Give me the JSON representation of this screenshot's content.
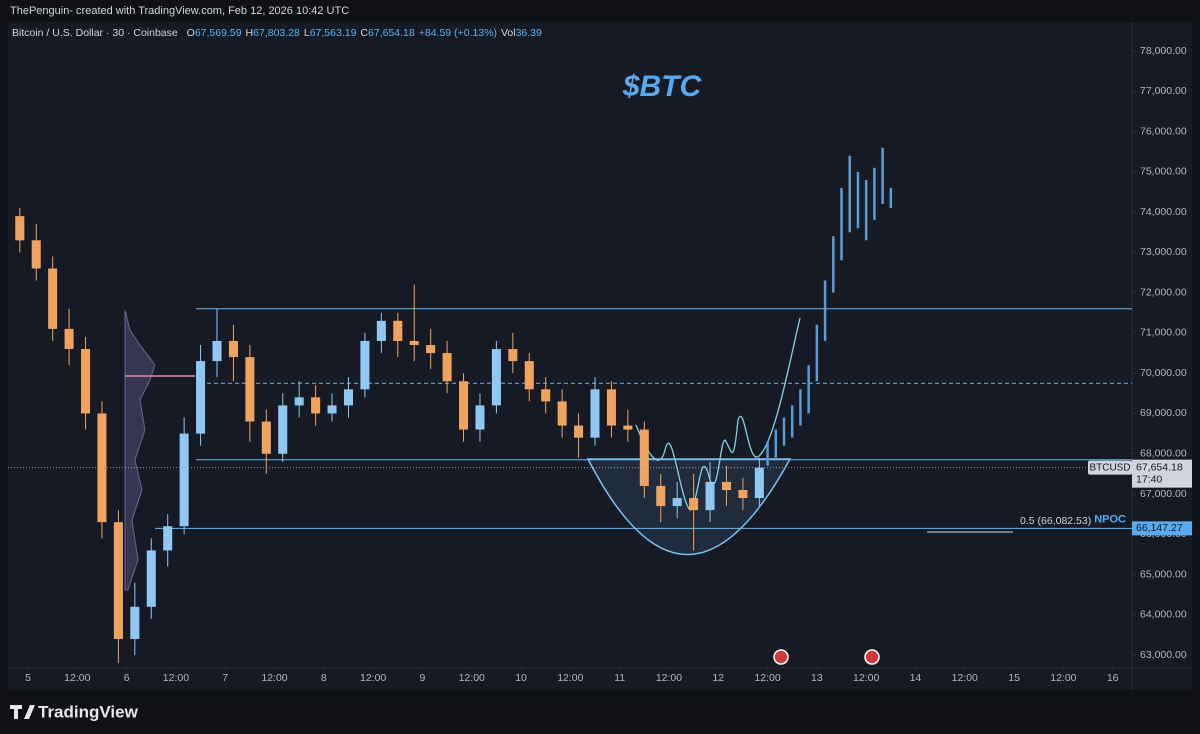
{
  "chart_data": {
    "type": "candlestick",
    "header": "ThePenguin- created with TradingView.com, Feb 12, 2026 10:42 UTC",
    "symbol": "Bitcoin / U.S. Dollar · 30 · Coinbase",
    "ohlc": [
      {
        "key": "O",
        "value": "67,569.59"
      },
      {
        "key": "H",
        "value": "67,803.28"
      },
      {
        "key": "L",
        "value": "67,563.19"
      },
      {
        "key": "C",
        "value": "67,654.18"
      }
    ],
    "change": "+84.59 (+0.13%)",
    "volume": {
      "key": "Vol",
      "value": "36.39"
    },
    "title": "$BTC",
    "up_color": "#90c8f4",
    "down_color": "#f0a35e",
    "projection_color": "#5b9bd5",
    "level_color": "#6fb4ec",
    "grid": false,
    "x": [
      -2,
      2,
      6,
      10,
      14,
      18,
      22,
      26,
      30,
      34,
      38,
      42,
      46,
      50,
      54,
      58,
      62,
      66,
      70,
      74,
      78,
      82,
      86,
      90,
      94,
      98,
      102,
      106,
      110,
      114,
      118,
      122,
      126,
      130,
      134,
      138,
      142,
      146,
      150,
      154,
      158,
      162,
      166,
      170,
      174,
      178
    ],
    "open": [
      73900,
      73300,
      72600,
      71100,
      70600,
      69000,
      66300,
      63400,
      64200,
      65600,
      66200,
      68500,
      70300,
      70800,
      70400,
      68800,
      68000,
      69200,
      69400,
      69000,
      69200,
      69600,
      70800,
      71300,
      70800,
      70700,
      70500,
      69800,
      68600,
      69200,
      70600,
      70300,
      69600,
      69300,
      68700,
      68400,
      69600,
      68700,
      68600,
      67200,
      66700,
      66900,
      66600,
      67300,
      67100,
      66900
    ],
    "high": [
      74100,
      73700,
      72900,
      71600,
      70900,
      69300,
      66600,
      64800,
      65900,
      66500,
      68900,
      70700,
      71600,
      71200,
      70700,
      69100,
      69500,
      69800,
      69700,
      69500,
      69900,
      71000,
      71500,
      71500,
      72200,
      71100,
      70800,
      70000,
      69500,
      70800,
      71000,
      70500,
      69900,
      69600,
      69000,
      69900,
      69800,
      69100,
      68800,
      67500,
      67300,
      67500,
      67800,
      67700,
      67400,
      67900
    ],
    "low": [
      73000,
      72300,
      70800,
      70200,
      68600,
      65900,
      62800,
      63000,
      63900,
      65200,
      66000,
      68200,
      69900,
      69800,
      68300,
      67500,
      67800,
      68900,
      68700,
      68800,
      68900,
      69400,
      70500,
      70400,
      70300,
      70100,
      69500,
      68300,
      68300,
      69000,
      70000,
      69300,
      69000,
      68400,
      67900,
      68200,
      68400,
      68300,
      66900,
      66300,
      66400,
      65600,
      66300,
      66700,
      66600,
      66700
    ],
    "close": [
      73300,
      72600,
      71100,
      70600,
      69000,
      66300,
      63400,
      64200,
      65600,
      66200,
      68500,
      70300,
      70800,
      70400,
      68800,
      68000,
      69200,
      69400,
      69000,
      69200,
      69600,
      70800,
      71300,
      70800,
      70700,
      70500,
      69800,
      68600,
      69200,
      70600,
      70300,
      69600,
      69300,
      68700,
      68400,
      69600,
      68700,
      68600,
      67200,
      66700,
      66900,
      66600,
      67300,
      67100,
      66900,
      67654.18
    ],
    "projection": {
      "x": [
        180,
        182,
        184,
        186,
        188,
        190,
        192,
        194,
        196,
        198,
        200,
        202,
        204,
        206,
        208,
        210
      ],
      "low": [
        67700,
        67900,
        68200,
        68400,
        68700,
        69000,
        69800,
        70800,
        72000,
        72800,
        73500,
        73600,
        73300,
        73800,
        74200,
        74100
      ],
      "high": [
        68300,
        68600,
        68900,
        69200,
        69600,
        70200,
        71200,
        72300,
        73400,
        74600,
        75400,
        75000,
        74800,
        75100,
        75600,
        74600
      ]
    },
    "levels": [
      {
        "value": 71600,
        "style": "solid"
      },
      {
        "value": 69750,
        "style": "dashed"
      },
      {
        "value": 67850,
        "style": "solid"
      },
      {
        "value": 66147.27,
        "style": "solid"
      }
    ],
    "last_price": {
      "symbol": "BTCUSD",
      "value": 67654.18,
      "label": "67,654.18",
      "countdown": "17:40"
    },
    "npoc": {
      "value": 66147.27,
      "label": "66,147.27",
      "text": "NPOC",
      "fib_label": "0.5 (66,082.53)"
    },
    "xlim": [
      -4.87,
      268.7
    ],
    "xticks": [
      {
        "value": 0,
        "label": "5"
      },
      {
        "value": 12,
        "label": "12:00"
      },
      {
        "value": 24,
        "label": "6"
      },
      {
        "value": 36,
        "label": "12:00"
      },
      {
        "value": 48,
        "label": "7"
      },
      {
        "value": 60,
        "label": "12:00"
      },
      {
        "value": 72,
        "label": "8"
      },
      {
        "value": 84,
        "label": "12:00"
      },
      {
        "value": 96,
        "label": "9"
      },
      {
        "value": 108,
        "label": "12:00"
      },
      {
        "value": 120,
        "label": "10"
      },
      {
        "value": 132,
        "label": "12:00"
      },
      {
        "value": 144,
        "label": "11"
      },
      {
        "value": 156,
        "label": "12:00"
      },
      {
        "value": 168,
        "label": "12"
      },
      {
        "value": 180,
        "label": "12:00"
      },
      {
        "value": 192,
        "label": "13"
      },
      {
        "value": 204,
        "label": "12:00"
      },
      {
        "value": 216,
        "label": "14"
      },
      {
        "value": 228,
        "label": "12:00"
      },
      {
        "value": 240,
        "label": "15"
      },
      {
        "value": 252,
        "label": "12:00"
      },
      {
        "value": 264,
        "label": "16"
      }
    ],
    "ylim": [
      62680,
      78720
    ],
    "yticks": [
      {
        "value": 63000,
        "label": "63,000.00"
      },
      {
        "value": 64000,
        "label": "64,000.00"
      },
      {
        "value": 65000,
        "label": "65,000.00"
      },
      {
        "value": 66000,
        "label": "66,000.00"
      },
      {
        "value": 67000,
        "label": "67,000.00"
      },
      {
        "value": 68000,
        "label": "68,000.00"
      },
      {
        "value": 69000,
        "label": "69,000.00"
      },
      {
        "value": 70000,
        "label": "70,000.00"
      },
      {
        "value": 71000,
        "label": "71,000.00"
      },
      {
        "value": 72000,
        "label": "72,000.00"
      },
      {
        "value": 73000,
        "label": "73,000.00"
      },
      {
        "value": 74000,
        "label": "74,000.00"
      },
      {
        "value": 75000,
        "label": "75,000.00"
      },
      {
        "value": 76000,
        "label": "76,000.00"
      },
      {
        "value": 77000,
        "label": "77,000.00"
      },
      {
        "value": 78000,
        "label": "78,000.00"
      }
    ],
    "brand": "TradingView"
  }
}
